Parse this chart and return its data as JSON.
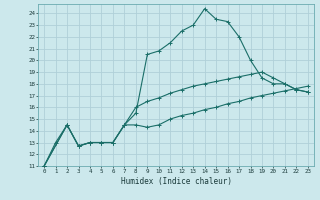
{
  "title": "",
  "xlabel": "Humidex (Indice chaleur)",
  "bg_color": "#cce8ec",
  "grid_color": "#b0d0d8",
  "line_color": "#1a6e68",
  "xlim": [
    -0.5,
    23.5
  ],
  "ylim": [
    11,
    24.8
  ],
  "xticks": [
    0,
    1,
    2,
    3,
    4,
    5,
    6,
    7,
    8,
    9,
    10,
    11,
    12,
    13,
    14,
    15,
    16,
    17,
    18,
    19,
    20,
    21,
    22,
    23
  ],
  "yticks": [
    11,
    12,
    13,
    14,
    15,
    16,
    17,
    18,
    19,
    20,
    21,
    22,
    23,
    24
  ],
  "line1_x": [
    0,
    1,
    2,
    3,
    4,
    5,
    6,
    7,
    8,
    9,
    10,
    11,
    12,
    13,
    14,
    15,
    16,
    17,
    18,
    19,
    20,
    21,
    22,
    23
  ],
  "line1_y": [
    11,
    13,
    14.5,
    12.7,
    13,
    13,
    13,
    14.5,
    15.5,
    20.5,
    20.8,
    21.5,
    22.5,
    23,
    24.4,
    23.5,
    23.3,
    22,
    20,
    18.5,
    18,
    18,
    17.5,
    17.3
  ],
  "line2_x": [
    0,
    2,
    3,
    4,
    5,
    6,
    7,
    8,
    9,
    10,
    11,
    12,
    13,
    14,
    15,
    16,
    17,
    18,
    19,
    20,
    21,
    22,
    23
  ],
  "line2_y": [
    11,
    14.5,
    12.7,
    13,
    13,
    13,
    14.5,
    16.0,
    16.5,
    16.8,
    17.2,
    17.5,
    17.8,
    18.0,
    18.2,
    18.4,
    18.6,
    18.8,
    19.0,
    18.5,
    18.0,
    17.5,
    17.3
  ],
  "line3_x": [
    0,
    2,
    3,
    4,
    5,
    6,
    7,
    8,
    9,
    10,
    11,
    12,
    13,
    14,
    15,
    16,
    17,
    18,
    19,
    20,
    21,
    22,
    23
  ],
  "line3_y": [
    11,
    14.5,
    12.7,
    13,
    13,
    13,
    14.5,
    14.5,
    14.3,
    14.5,
    15.0,
    15.3,
    15.5,
    15.8,
    16.0,
    16.3,
    16.5,
    16.8,
    17.0,
    17.2,
    17.4,
    17.6,
    17.8
  ]
}
